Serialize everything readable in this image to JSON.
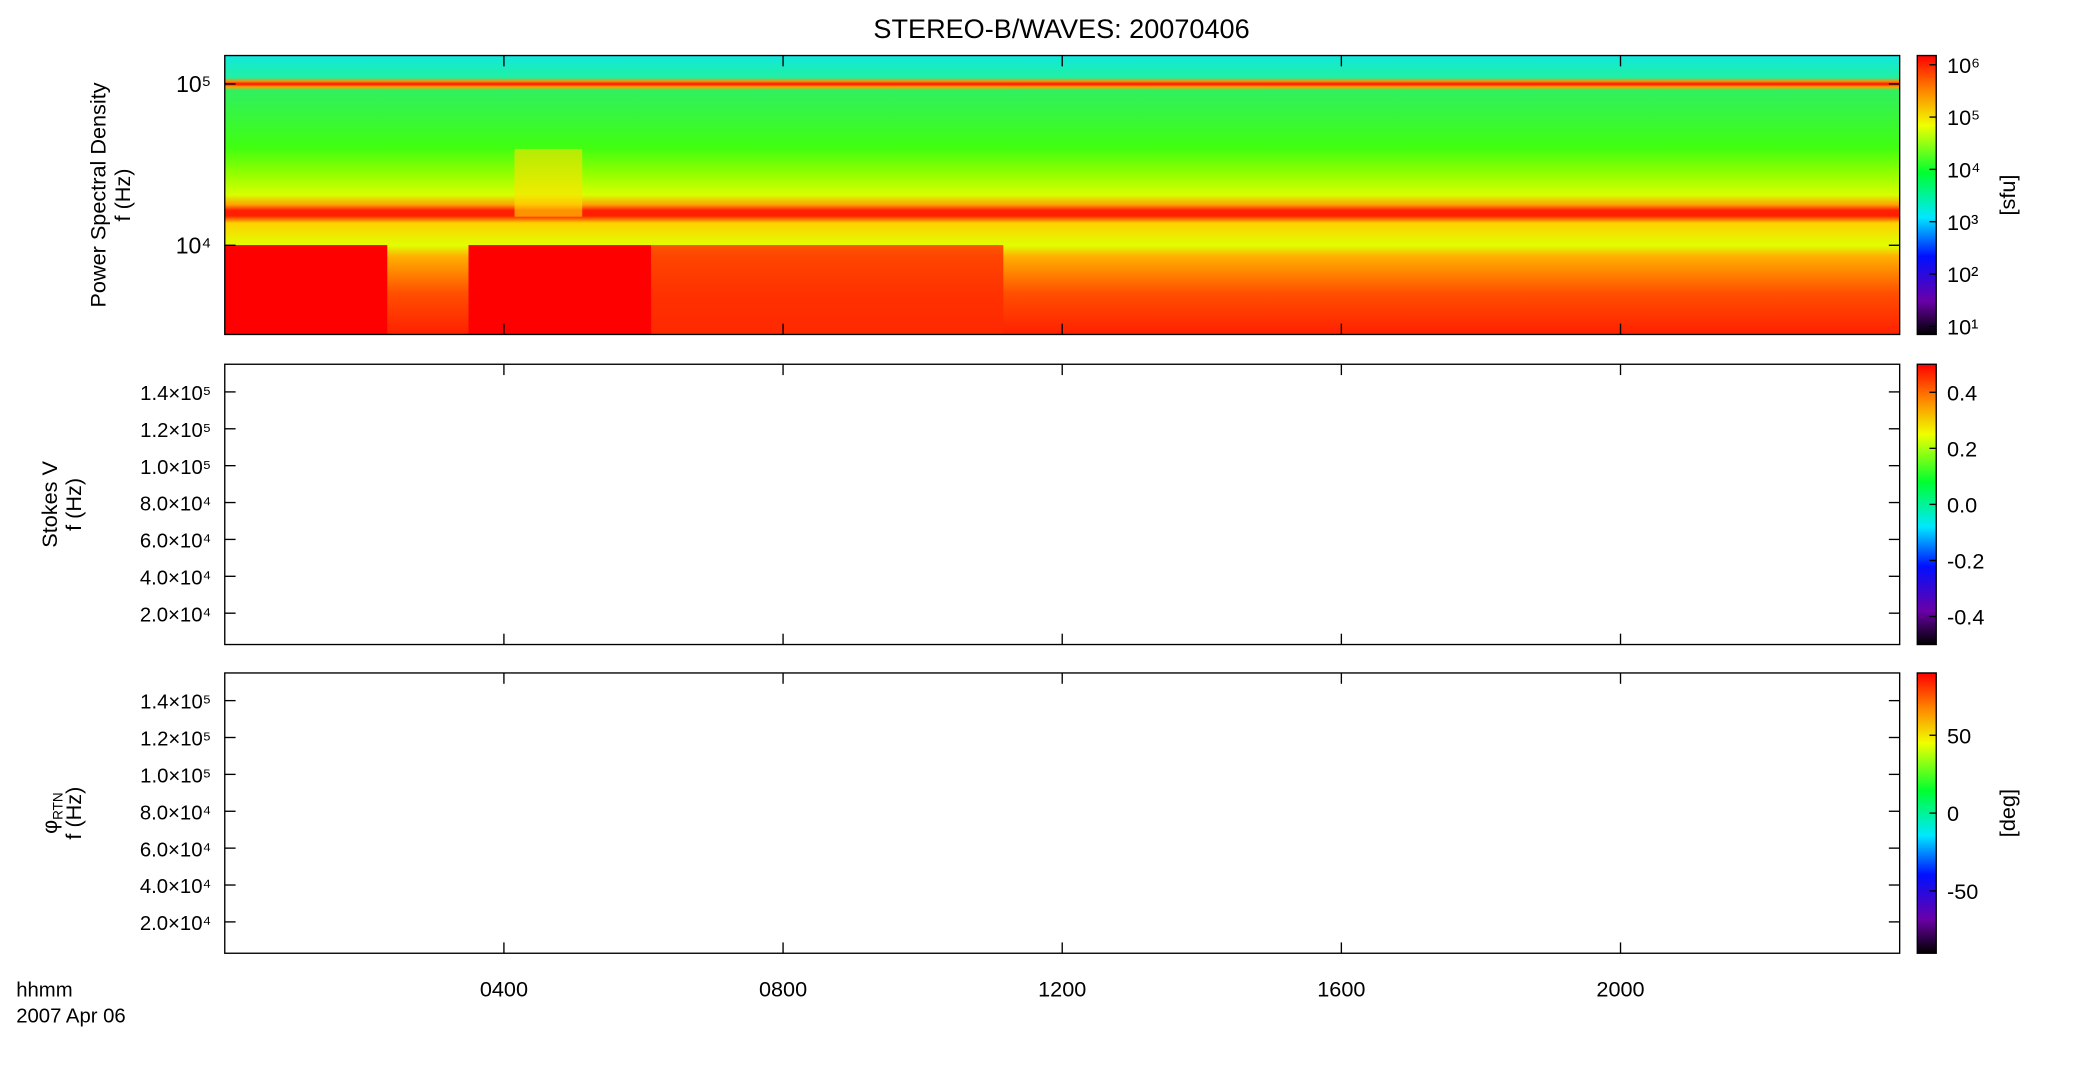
{
  "chart_data": {
    "type": "spectrogram",
    "title": "STEREO-B/WAVES: 20070406",
    "xlabel": "hhmm",
    "date": "2007 Apr 06",
    "xlim": [
      0,
      24
    ],
    "xticks": [
      {
        "value": 4,
        "label": "0400"
      },
      {
        "value": 8,
        "label": "0800"
      },
      {
        "value": 12,
        "label": "1200"
      },
      {
        "value": 16,
        "label": "1600"
      },
      {
        "value": 20,
        "label": "2000"
      }
    ],
    "panels": [
      {
        "ylabel": [
          "Power Spectral Density",
          "f (Hz)"
        ],
        "log": true,
        "ylim": [
          2800,
          150000
        ],
        "yticks": [
          {
            "value": 10000,
            "label": "10⁴"
          },
          {
            "value": 100000,
            "label": "10⁵"
          }
        ],
        "colorbar": {
          "log": true,
          "lim": [
            7,
            1500000
          ],
          "label": "[sfu]",
          "ticks": [
            {
              "value": 10,
              "label": "10¹"
            },
            {
              "value": 100,
              "label": "10²"
            },
            {
              "value": 1000,
              "label": "10³"
            },
            {
              "value": 10000,
              "label": "10⁴"
            },
            {
              "value": 100000,
              "label": "10⁵"
            },
            {
              "value": 1000000,
              "label": "10⁶"
            }
          ]
        }
      },
      {
        "ylabel": [
          "Stokes V",
          "f (Hz)"
        ],
        "log": false,
        "ylim": [
          3000,
          155000
        ],
        "yticks": [
          {
            "value": 20000,
            "label": "2.0×10⁴"
          },
          {
            "value": 40000,
            "label": "4.0×10⁴"
          },
          {
            "value": 60000,
            "label": "6.0×10⁴"
          },
          {
            "value": 80000,
            "label": "8.0×10⁴"
          },
          {
            "value": 100000,
            "label": "1.0×10⁵"
          },
          {
            "value": 120000,
            "label": "1.2×10⁵"
          },
          {
            "value": 140000,
            "label": "1.4×10⁵"
          }
        ],
        "colorbar": {
          "log": false,
          "lim": [
            -0.5,
            0.5
          ],
          "ticks": [
            -0.4,
            -0.2,
            {
              "value": 0,
              "label": "0.0"
            },
            0.2,
            0.4
          ]
        }
      },
      {
        "ylabel": [
          {
            "text": "φ",
            "sub": "RTN"
          },
          "f (Hz)"
        ],
        "log": false,
        "ylim": [
          3000,
          155000
        ],
        "yticks": [
          {
            "value": 20000,
            "label": "2.0×10⁴"
          },
          {
            "value": 40000,
            "label": "4.0×10⁴"
          },
          {
            "value": 60000,
            "label": "6.0×10⁴"
          },
          {
            "value": 80000,
            "label": "8.0×10⁴"
          },
          {
            "value": 100000,
            "label": "1.0×10⁵"
          },
          {
            "value": 120000,
            "label": "1.2×10⁵"
          },
          {
            "value": 140000,
            "label": "1.4×10⁵"
          }
        ],
        "colorbar": {
          "log": false,
          "lim": [
            -90,
            90
          ],
          "label": "[deg]",
          "ticks": [
            -50,
            0,
            50
          ]
        }
      }
    ]
  }
}
